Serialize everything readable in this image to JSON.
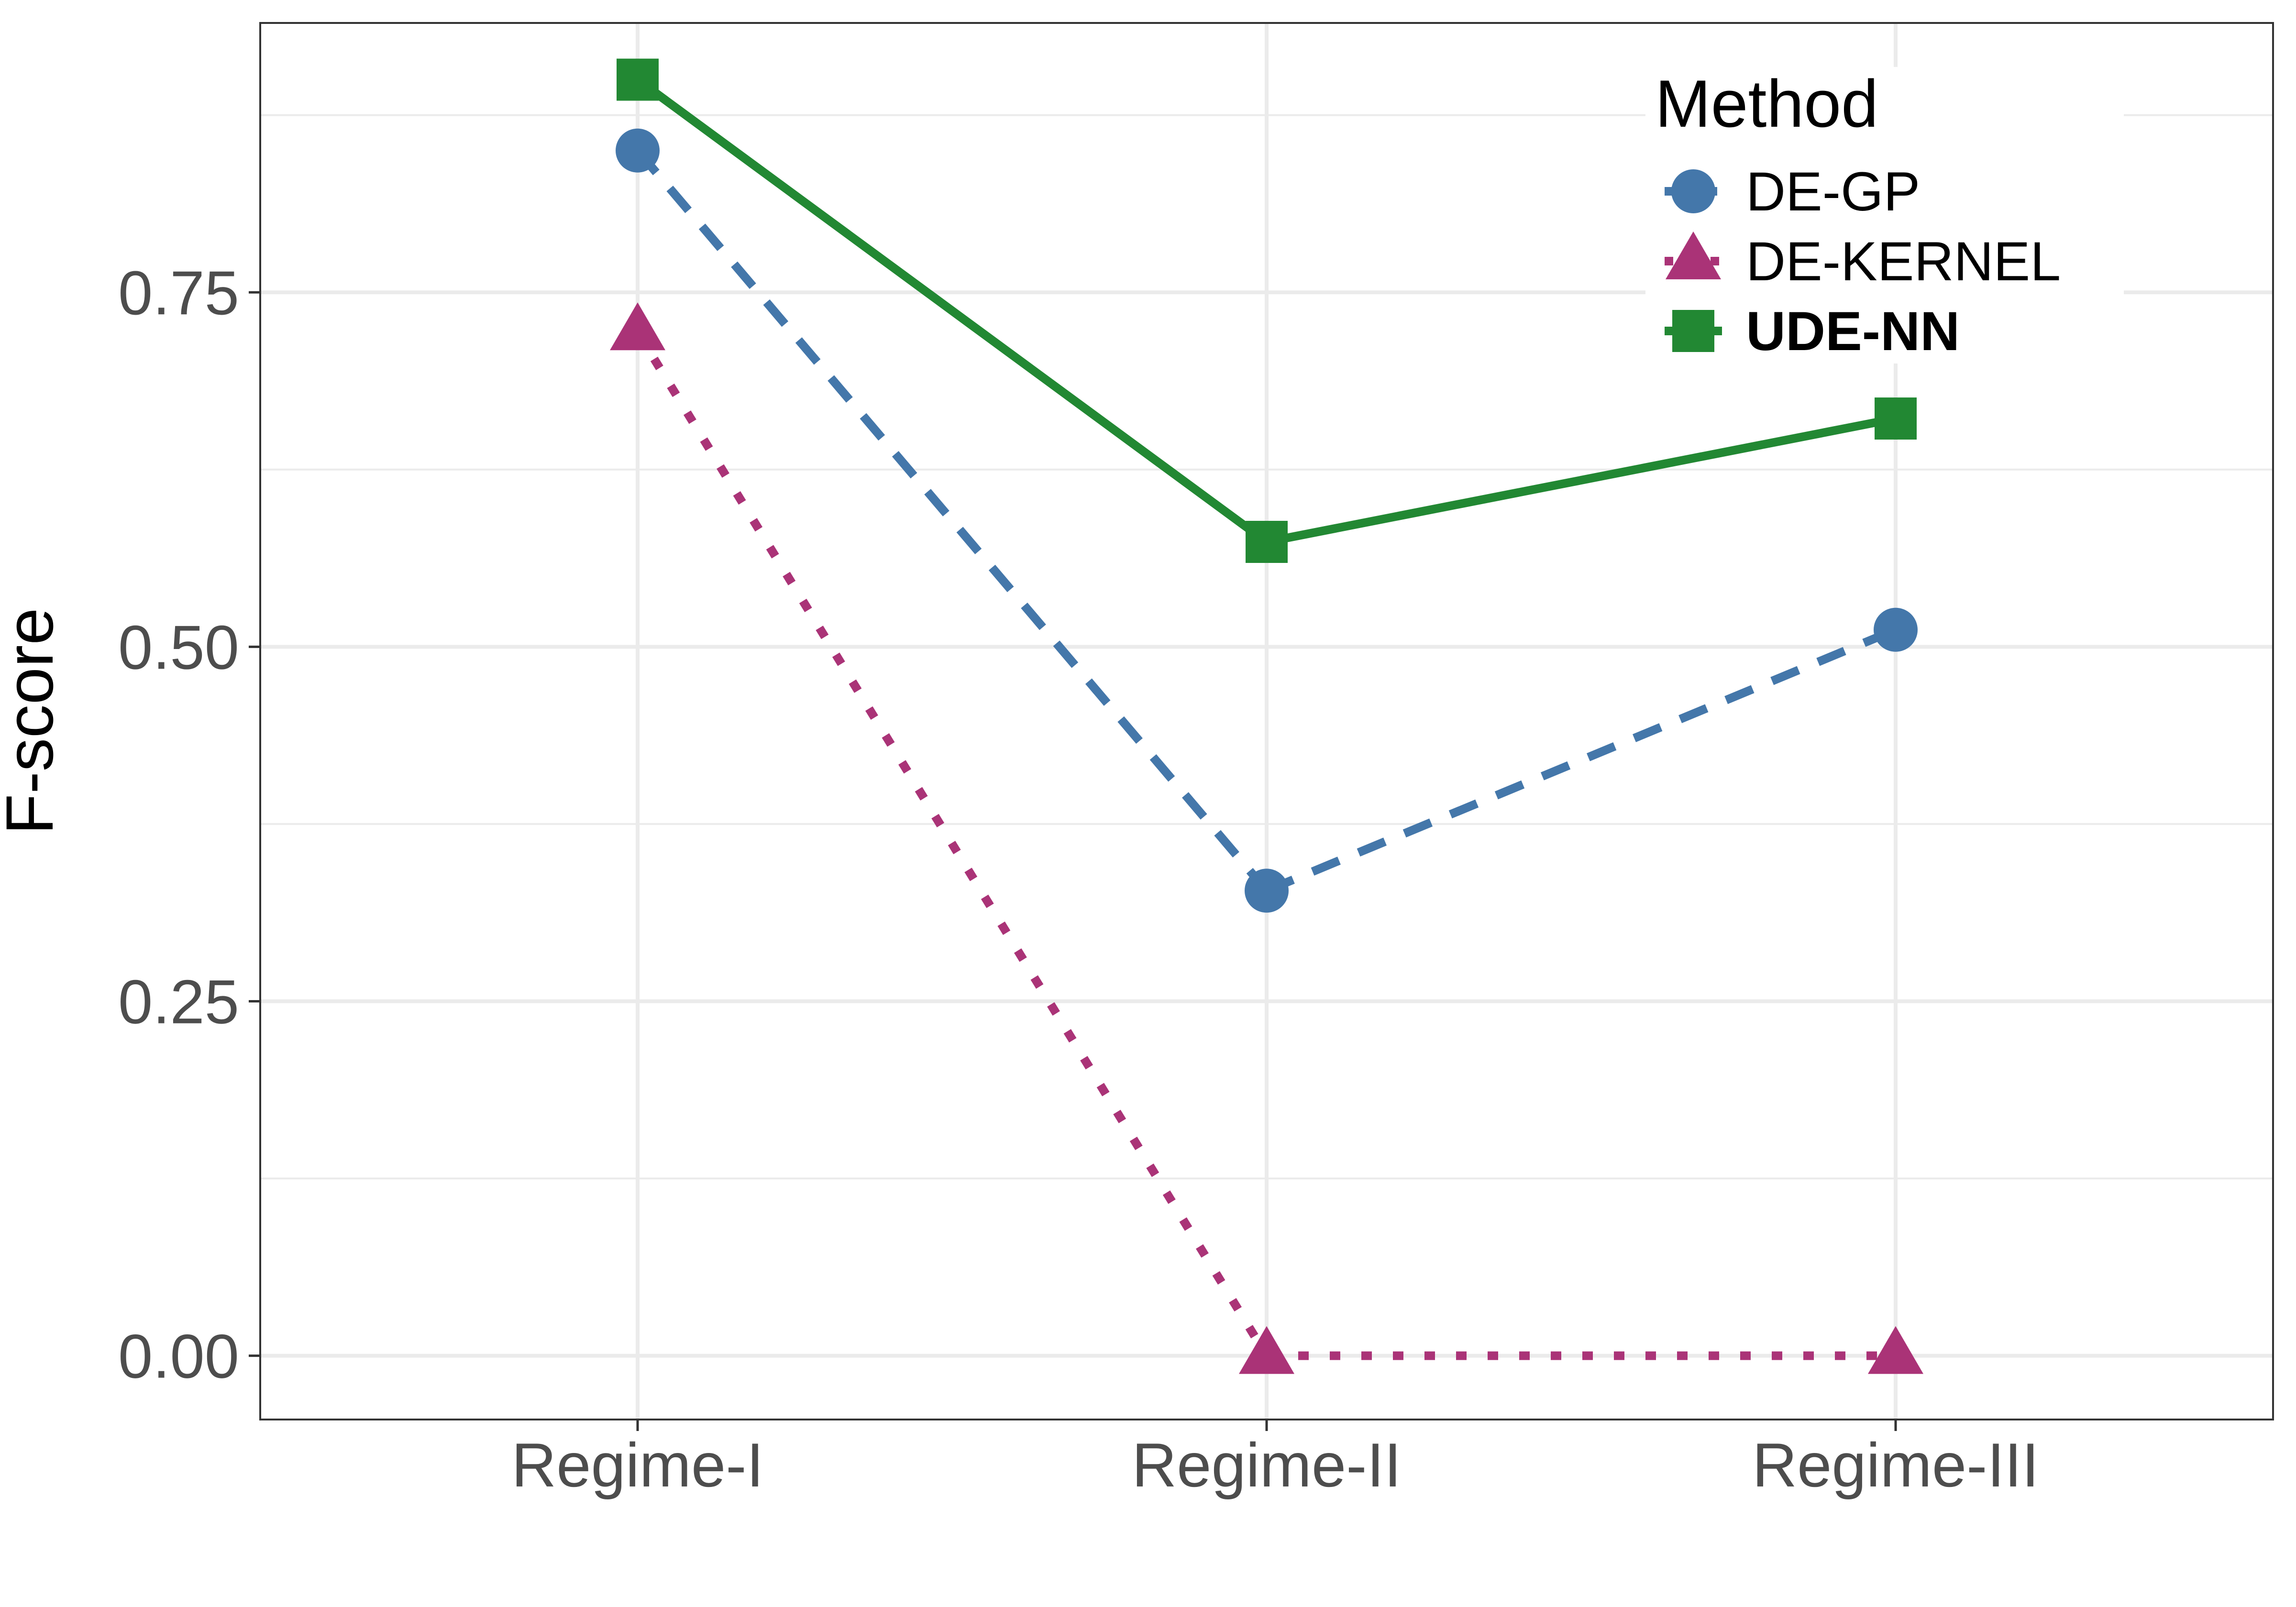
{
  "chart_data": {
    "type": "line",
    "categories": [
      "Regime-I",
      "Regime-II",
      "Regime-III"
    ],
    "ylabel": "F-score",
    "xlabel": "",
    "ylim": [
      -0.045,
      0.94
    ],
    "yticks": [
      0.0,
      0.25,
      0.5,
      0.75
    ],
    "ytick_labels": [
      "0.00",
      "0.25",
      "0.50",
      "0.75"
    ],
    "grid": true,
    "legend": {
      "title": "Method",
      "placement": "top-right"
    },
    "series": [
      {
        "name": "DE-GP",
        "values": [
          0.85,
          0.328,
          0.512
        ],
        "color": "#4477AA",
        "marker": "circle",
        "line": "dashed",
        "bold": false
      },
      {
        "name": "DE-KERNEL",
        "values": [
          0.722,
          0.0,
          0.0
        ],
        "color": "#AA3377",
        "marker": "triangle",
        "line": "dotted",
        "bold": false
      },
      {
        "name": "UDE-NN",
        "values": [
          0.9,
          0.574,
          0.661
        ],
        "color": "#228833",
        "marker": "square",
        "line": "solid",
        "bold": true
      }
    ]
  }
}
